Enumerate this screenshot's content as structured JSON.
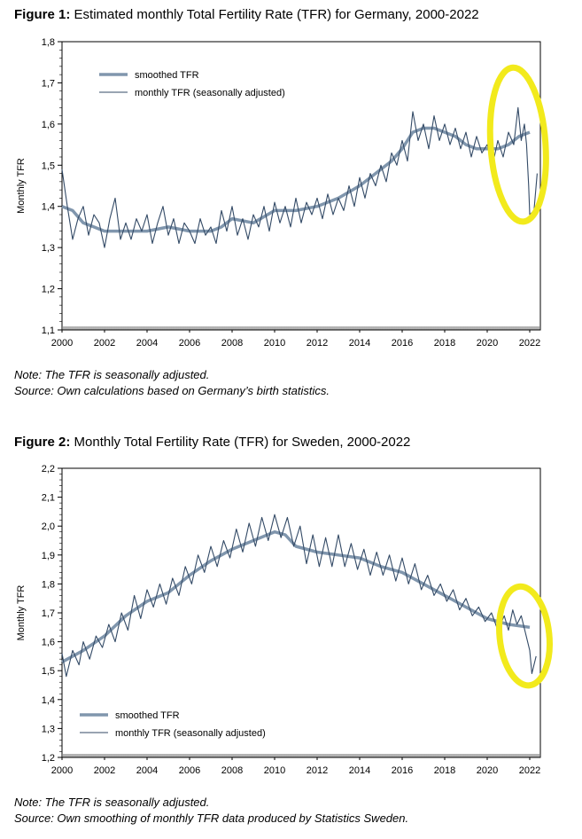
{
  "figure1": {
    "label": "Figure 1:",
    "title": "Estimated monthly Total Fertility Rate (TFR) for Germany, 2000-2022",
    "note": "Note: The TFR is seasonally adjusted.",
    "source": "Source: Own calculations based on Germany’s birth statistics.",
    "chart_data": {
      "type": "line",
      "xlabel": "",
      "ylabel": "Monthly TFR",
      "xlim": [
        2000,
        2022.5
      ],
      "ylim": [
        1.1,
        1.8
      ],
      "x_ticks": [
        "2000",
        "2002",
        "2004",
        "2006",
        "2008",
        "2010",
        "2012",
        "2014",
        "2016",
        "2018",
        "2020",
        "2022"
      ],
      "y_ticks": [
        "1,1",
        "1,2",
        "1,3",
        "1,4",
        "1,5",
        "1,6",
        "1,7",
        "1,8"
      ],
      "legend": {
        "placement": "top-left",
        "entries": [
          "smoothed TFR",
          "monthly TFR (seasonally adjusted)"
        ]
      },
      "series": [
        {
          "name": "smoothed TFR",
          "color": "#8096ad",
          "points": [
            [
              2000.0,
              1.4
            ],
            [
              2000.5,
              1.39
            ],
            [
              2001.0,
              1.36
            ],
            [
              2001.5,
              1.35
            ],
            [
              2002.0,
              1.34
            ],
            [
              2003.0,
              1.34
            ],
            [
              2004.0,
              1.34
            ],
            [
              2005.0,
              1.35
            ],
            [
              2006.0,
              1.34
            ],
            [
              2007.0,
              1.34
            ],
            [
              2007.5,
              1.35
            ],
            [
              2008.0,
              1.37
            ],
            [
              2009.0,
              1.36
            ],
            [
              2010.0,
              1.39
            ],
            [
              2011.0,
              1.39
            ],
            [
              2012.0,
              1.4
            ],
            [
              2013.0,
              1.42
            ],
            [
              2014.0,
              1.45
            ],
            [
              2014.5,
              1.47
            ],
            [
              2015.0,
              1.49
            ],
            [
              2015.5,
              1.51
            ],
            [
              2016.0,
              1.54
            ],
            [
              2016.5,
              1.58
            ],
            [
              2017.0,
              1.59
            ],
            [
              2017.5,
              1.59
            ],
            [
              2018.0,
              1.58
            ],
            [
              2018.5,
              1.57
            ],
            [
              2019.0,
              1.55
            ],
            [
              2019.5,
              1.54
            ],
            [
              2020.0,
              1.54
            ],
            [
              2020.5,
              1.54
            ],
            [
              2021.0,
              1.55
            ],
            [
              2021.5,
              1.57
            ],
            [
              2022.0,
              1.58
            ]
          ]
        },
        {
          "name": "monthly TFR (seasonally adjusted)",
          "color": "#334a66",
          "points": [
            [
              2000.0,
              1.49
            ],
            [
              2000.25,
              1.4
            ],
            [
              2000.5,
              1.32
            ],
            [
              2000.75,
              1.37
            ],
            [
              2001.0,
              1.4
            ],
            [
              2001.25,
              1.33
            ],
            [
              2001.5,
              1.38
            ],
            [
              2001.75,
              1.36
            ],
            [
              2002.0,
              1.3
            ],
            [
              2002.25,
              1.37
            ],
            [
              2002.5,
              1.42
            ],
            [
              2002.75,
              1.32
            ],
            [
              2003.0,
              1.36
            ],
            [
              2003.25,
              1.32
            ],
            [
              2003.5,
              1.37
            ],
            [
              2003.75,
              1.34
            ],
            [
              2004.0,
              1.38
            ],
            [
              2004.25,
              1.31
            ],
            [
              2004.5,
              1.36
            ],
            [
              2004.75,
              1.4
            ],
            [
              2005.0,
              1.33
            ],
            [
              2005.25,
              1.37
            ],
            [
              2005.5,
              1.31
            ],
            [
              2005.75,
              1.36
            ],
            [
              2006.0,
              1.34
            ],
            [
              2006.25,
              1.31
            ],
            [
              2006.5,
              1.37
            ],
            [
              2006.75,
              1.33
            ],
            [
              2007.0,
              1.35
            ],
            [
              2007.25,
              1.31
            ],
            [
              2007.5,
              1.39
            ],
            [
              2007.75,
              1.34
            ],
            [
              2008.0,
              1.4
            ],
            [
              2008.25,
              1.33
            ],
            [
              2008.5,
              1.37
            ],
            [
              2008.75,
              1.32
            ],
            [
              2009.0,
              1.38
            ],
            [
              2009.25,
              1.35
            ],
            [
              2009.5,
              1.4
            ],
            [
              2009.75,
              1.34
            ],
            [
              2010.0,
              1.41
            ],
            [
              2010.25,
              1.36
            ],
            [
              2010.5,
              1.4
            ],
            [
              2010.75,
              1.35
            ],
            [
              2011.0,
              1.42
            ],
            [
              2011.25,
              1.36
            ],
            [
              2011.5,
              1.41
            ],
            [
              2011.75,
              1.38
            ],
            [
              2012.0,
              1.42
            ],
            [
              2012.25,
              1.37
            ],
            [
              2012.5,
              1.43
            ],
            [
              2012.75,
              1.38
            ],
            [
              2013.0,
              1.42
            ],
            [
              2013.25,
              1.39
            ],
            [
              2013.5,
              1.45
            ],
            [
              2013.75,
              1.4
            ],
            [
              2014.0,
              1.47
            ],
            [
              2014.25,
              1.42
            ],
            [
              2014.5,
              1.48
            ],
            [
              2014.75,
              1.45
            ],
            [
              2015.0,
              1.5
            ],
            [
              2015.25,
              1.46
            ],
            [
              2015.5,
              1.53
            ],
            [
              2015.75,
              1.5
            ],
            [
              2016.0,
              1.56
            ],
            [
              2016.25,
              1.51
            ],
            [
              2016.5,
              1.63
            ],
            [
              2016.75,
              1.56
            ],
            [
              2017.0,
              1.6
            ],
            [
              2017.25,
              1.54
            ],
            [
              2017.5,
              1.62
            ],
            [
              2017.75,
              1.56
            ],
            [
              2018.0,
              1.6
            ],
            [
              2018.25,
              1.55
            ],
            [
              2018.5,
              1.59
            ],
            [
              2018.75,
              1.54
            ],
            [
              2019.0,
              1.58
            ],
            [
              2019.25,
              1.52
            ],
            [
              2019.5,
              1.57
            ],
            [
              2019.75,
              1.53
            ],
            [
              2020.0,
              1.55
            ],
            [
              2020.25,
              1.5
            ],
            [
              2020.5,
              1.56
            ],
            [
              2020.75,
              1.52
            ],
            [
              2021.0,
              1.58
            ],
            [
              2021.25,
              1.55
            ],
            [
              2021.45,
              1.64
            ],
            [
              2021.6,
              1.56
            ],
            [
              2021.75,
              1.6
            ],
            [
              2021.85,
              1.55
            ],
            [
              2021.95,
              1.45
            ],
            [
              2022.0,
              1.38
            ],
            [
              2022.2,
              1.39
            ],
            [
              2022.35,
              1.48
            ]
          ]
        }
      ]
    }
  },
  "figure2": {
    "label": "Figure 2:",
    "title": "Monthly Total Fertility Rate (TFR) for Sweden, 2000-2022",
    "note": "Note: The TFR is seasonally adjusted.",
    "source": "Source: Own smoothing of monthly TFR data produced by Statistics Sweden.",
    "chart_data": {
      "type": "line",
      "xlabel": "",
      "ylabel": "Monthly TFR",
      "xlim": [
        2000,
        2022.5
      ],
      "ylim": [
        1.2,
        2.2
      ],
      "x_ticks": [
        "2000",
        "2002",
        "2004",
        "2006",
        "2008",
        "2010",
        "2012",
        "2014",
        "2016",
        "2018",
        "2020",
        "2022"
      ],
      "y_ticks": [
        "1,2",
        "1,3",
        "1,4",
        "1,5",
        "1,6",
        "1,7",
        "1,8",
        "1,9",
        "2,0",
        "2,1",
        "2,2"
      ],
      "legend": {
        "placement": "bottom-left",
        "entries": [
          "smoothed TFR",
          "monthly TFR (seasonally adjusted)"
        ]
      },
      "series": [
        {
          "name": "smoothed TFR",
          "color": "#8096ad",
          "points": [
            [
              2000.0,
              1.53
            ],
            [
              2001.0,
              1.57
            ],
            [
              2002.0,
              1.62
            ],
            [
              2003.0,
              1.69
            ],
            [
              2004.0,
              1.74
            ],
            [
              2005.0,
              1.77
            ],
            [
              2006.0,
              1.83
            ],
            [
              2007.0,
              1.88
            ],
            [
              2008.0,
              1.92
            ],
            [
              2009.0,
              1.95
            ],
            [
              2010.0,
              1.98
            ],
            [
              2010.5,
              1.97
            ],
            [
              2011.0,
              1.93
            ],
            [
              2012.0,
              1.91
            ],
            [
              2013.0,
              1.9
            ],
            [
              2014.0,
              1.89
            ],
            [
              2015.0,
              1.86
            ],
            [
              2016.0,
              1.84
            ],
            [
              2017.0,
              1.8
            ],
            [
              2018.0,
              1.76
            ],
            [
              2019.0,
              1.72
            ],
            [
              2020.0,
              1.68
            ],
            [
              2021.0,
              1.66
            ],
            [
              2022.0,
              1.65
            ]
          ]
        },
        {
          "name": "monthly TFR (seasonally adjusted)",
          "color": "#334a66",
          "points": [
            [
              2000.0,
              1.56
            ],
            [
              2000.2,
              1.48
            ],
            [
              2000.5,
              1.57
            ],
            [
              2000.8,
              1.52
            ],
            [
              2001.0,
              1.6
            ],
            [
              2001.3,
              1.54
            ],
            [
              2001.6,
              1.62
            ],
            [
              2001.9,
              1.58
            ],
            [
              2002.2,
              1.66
            ],
            [
              2002.5,
              1.6
            ],
            [
              2002.8,
              1.7
            ],
            [
              2003.1,
              1.64
            ],
            [
              2003.4,
              1.76
            ],
            [
              2003.7,
              1.68
            ],
            [
              2004.0,
              1.78
            ],
            [
              2004.3,
              1.72
            ],
            [
              2004.6,
              1.8
            ],
            [
              2004.9,
              1.73
            ],
            [
              2005.2,
              1.82
            ],
            [
              2005.5,
              1.76
            ],
            [
              2005.8,
              1.86
            ],
            [
              2006.1,
              1.8
            ],
            [
              2006.4,
              1.9
            ],
            [
              2006.7,
              1.84
            ],
            [
              2007.0,
              1.93
            ],
            [
              2007.3,
              1.86
            ],
            [
              2007.6,
              1.95
            ],
            [
              2007.9,
              1.89
            ],
            [
              2008.2,
              1.99
            ],
            [
              2008.5,
              1.91
            ],
            [
              2008.8,
              2.01
            ],
            [
              2009.1,
              1.93
            ],
            [
              2009.4,
              2.03
            ],
            [
              2009.7,
              1.95
            ],
            [
              2010.0,
              2.04
            ],
            [
              2010.3,
              1.96
            ],
            [
              2010.6,
              2.03
            ],
            [
              2010.9,
              1.93
            ],
            [
              2011.2,
              2.0
            ],
            [
              2011.5,
              1.87
            ],
            [
              2011.8,
              1.97
            ],
            [
              2012.1,
              1.86
            ],
            [
              2012.4,
              1.96
            ],
            [
              2012.7,
              1.86
            ],
            [
              2013.0,
              1.97
            ],
            [
              2013.3,
              1.86
            ],
            [
              2013.6,
              1.94
            ],
            [
              2013.9,
              1.85
            ],
            [
              2014.2,
              1.92
            ],
            [
              2014.5,
              1.83
            ],
            [
              2014.8,
              1.91
            ],
            [
              2015.1,
              1.83
            ],
            [
              2015.4,
              1.9
            ],
            [
              2015.7,
              1.81
            ],
            [
              2016.0,
              1.89
            ],
            [
              2016.3,
              1.8
            ],
            [
              2016.6,
              1.87
            ],
            [
              2016.9,
              1.78
            ],
            [
              2017.2,
              1.83
            ],
            [
              2017.5,
              1.76
            ],
            [
              2017.8,
              1.8
            ],
            [
              2018.1,
              1.74
            ],
            [
              2018.4,
              1.78
            ],
            [
              2018.7,
              1.71
            ],
            [
              2019.0,
              1.75
            ],
            [
              2019.3,
              1.69
            ],
            [
              2019.6,
              1.72
            ],
            [
              2019.9,
              1.67
            ],
            [
              2020.2,
              1.7
            ],
            [
              2020.5,
              1.64
            ],
            [
              2020.8,
              1.69
            ],
            [
              2021.0,
              1.64
            ],
            [
              2021.2,
              1.71
            ],
            [
              2021.4,
              1.66
            ],
            [
              2021.6,
              1.69
            ],
            [
              2021.8,
              1.63
            ],
            [
              2022.0,
              1.57
            ],
            [
              2022.1,
              1.49
            ],
            [
              2022.3,
              1.55
            ]
          ]
        }
      ]
    }
  },
  "annotation": {
    "color": "#f2ea1c"
  }
}
